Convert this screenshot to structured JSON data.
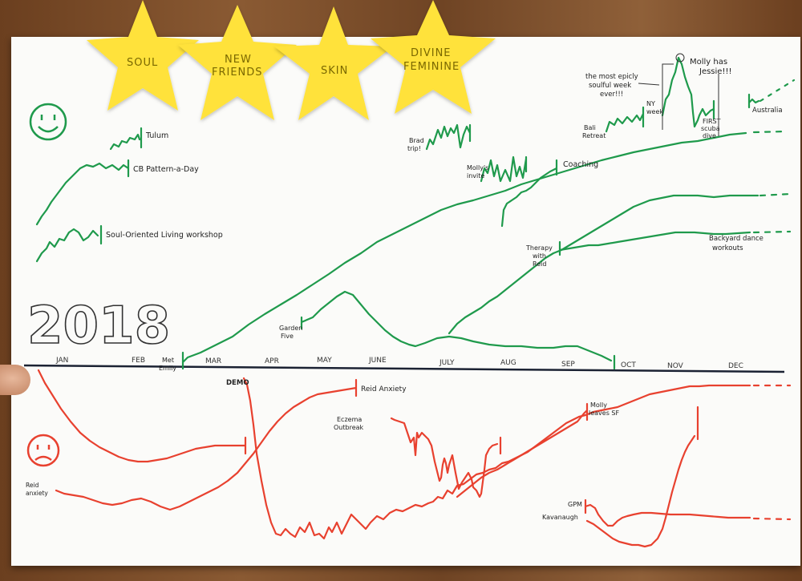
{
  "stars": [
    {
      "label_lines": [
        "SOUL"
      ]
    },
    {
      "label_lines": [
        "NEW",
        "FRIENDS"
      ]
    },
    {
      "label_lines": [
        "SKIN"
      ]
    },
    {
      "label_lines": [
        "DIVINE",
        "FEMININE"
      ]
    }
  ],
  "year": "2018",
  "months": [
    "JAN",
    "FEB",
    "MAR",
    "APR",
    "MAY",
    "JUNE",
    "JULY",
    "AUG",
    "SEP",
    "OCT",
    "NOV",
    "DEC"
  ],
  "positive_labels": {
    "tulum": "Tulum",
    "cb_pattern": "CB Pattern-a-Day",
    "soul_workshop": "Soul-Oriented Living workshop",
    "met_emily": [
      "Met",
      "Emily"
    ],
    "garden_five": [
      "Garden",
      "Five"
    ],
    "brad_trip": [
      "Brad",
      "trip!"
    ],
    "mollys_invite": [
      "Molly's",
      "invite"
    ],
    "coaching": "Coaching",
    "bali_retreat": [
      "Bali",
      "Retreat"
    ],
    "epic_week": [
      "the most epicly",
      "soulful week",
      "ever!!!"
    ],
    "ny_week": [
      "NY",
      "week"
    ],
    "molly_has_jessie": [
      "Molly has",
      "Jessie!!!"
    ],
    "first_scuba": [
      "FIRST",
      "scuba",
      "dive"
    ],
    "australia": "Australia",
    "therapy": [
      "Therapy",
      "with",
      "Reid"
    ],
    "backyard": [
      "Backyard dance",
      "workouts"
    ]
  },
  "negative_labels": {
    "demo": "DEMO",
    "reid_anxiety": "Reid Anxiety",
    "eczema": [
      "Eczema",
      "Outbreak"
    ],
    "molly_leaves": [
      "Molly",
      "leaves SF"
    ],
    "reid_anxiety_2": [
      "Reid",
      "anxiety"
    ],
    "gpm": "GPM",
    "kavanaugh": "Kavanaugh"
  },
  "colors": {
    "positive": "#1f9a4c",
    "negative": "#e8412f",
    "star": "#ffe23a",
    "timeline": "#1b2233"
  }
}
